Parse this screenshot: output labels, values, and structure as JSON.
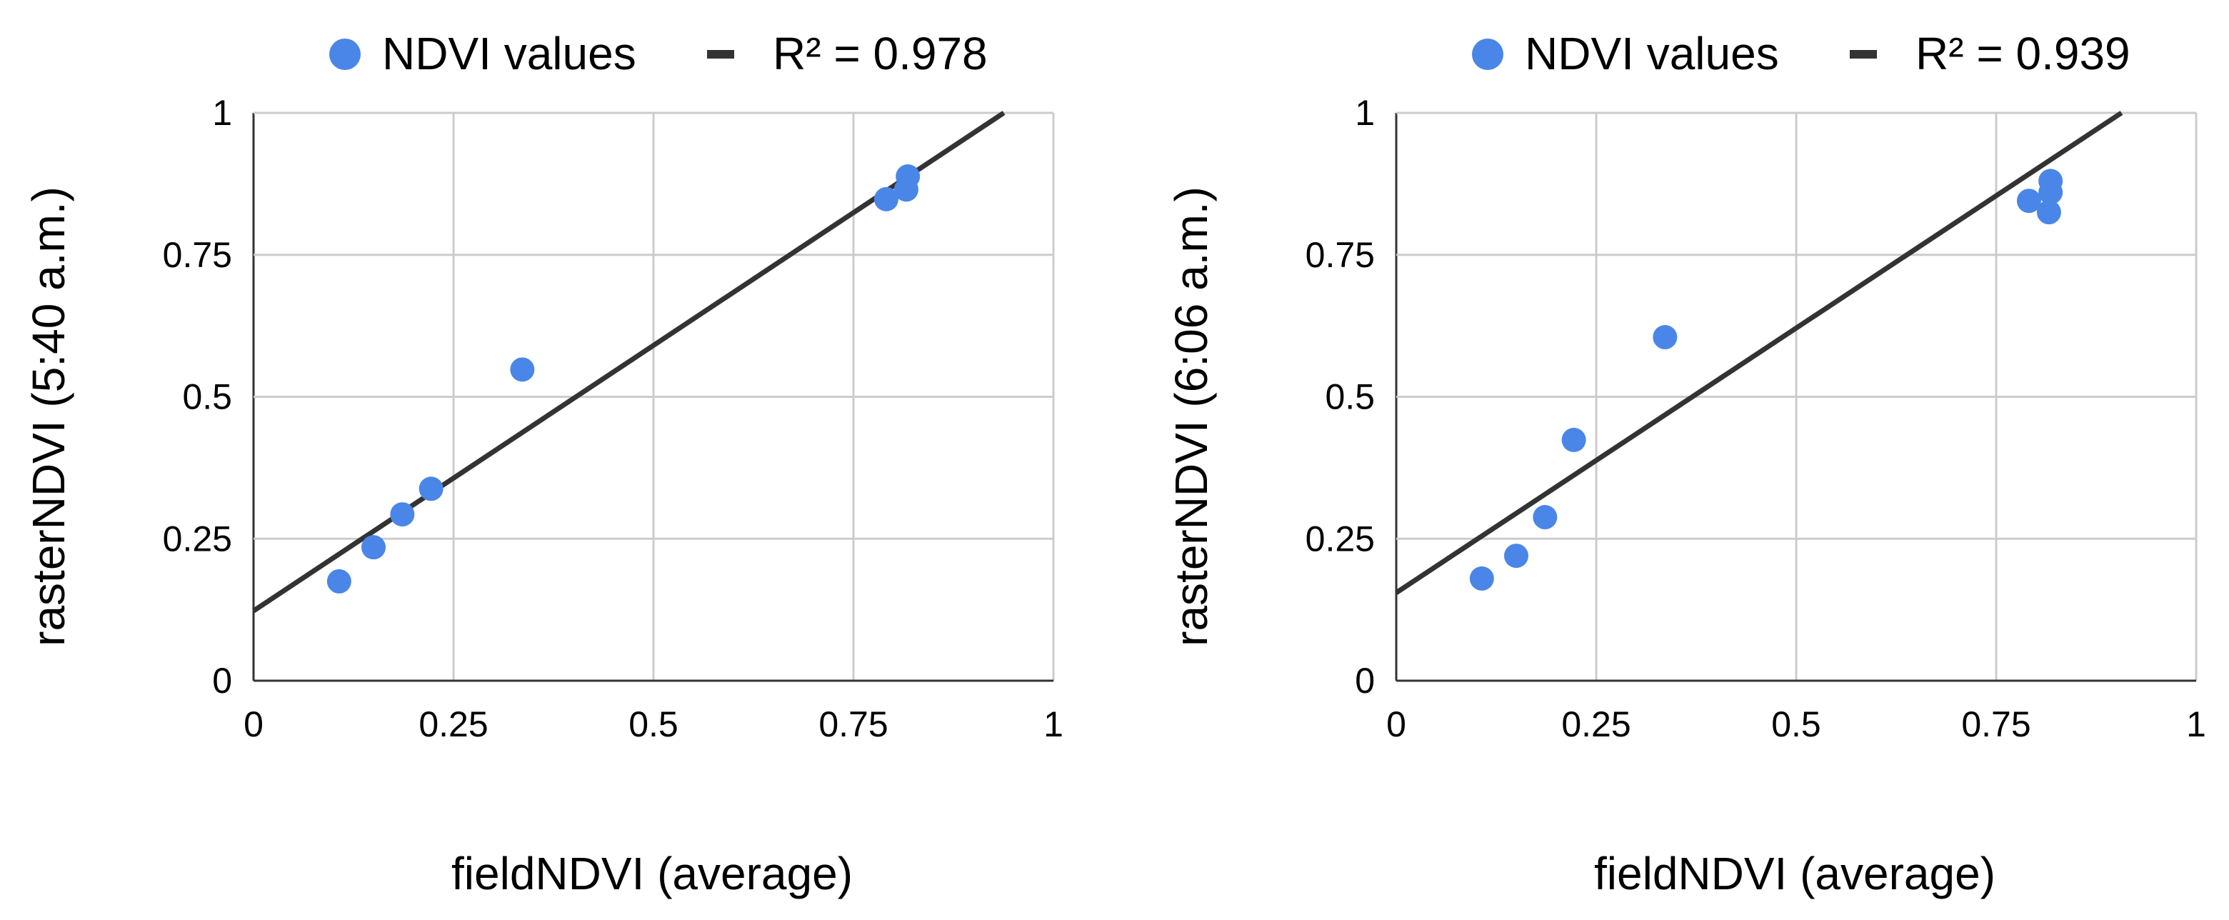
{
  "colors": {
    "points": "#4a86e8",
    "trendline": "#333333",
    "grid": "#cccccc"
  },
  "chart_data": [
    {
      "type": "scatter",
      "legend": {
        "series_label": "NDVI values",
        "trend_label": "R² = 0.978"
      },
      "xlabel": "fieldNDVI (average)",
      "ylabel": "rasterNDVI (5:40 a.m.)",
      "xlim": [
        0,
        1
      ],
      "ylim": [
        0,
        1
      ],
      "xticks": [
        "0",
        "0.25",
        "0.5",
        "0.75",
        "1"
      ],
      "yticks": [
        "0",
        "0.25",
        "0.5",
        "0.75",
        "1"
      ],
      "grid": true,
      "points": [
        {
          "x": 0.107,
          "y": 0.175
        },
        {
          "x": 0.15,
          "y": 0.235
        },
        {
          "x": 0.186,
          "y": 0.293
        },
        {
          "x": 0.222,
          "y": 0.338
        },
        {
          "x": 0.336,
          "y": 0.548
        },
        {
          "x": 0.791,
          "y": 0.848
        },
        {
          "x": 0.816,
          "y": 0.865
        },
        {
          "x": 0.818,
          "y": 0.888
        }
      ],
      "trendline": {
        "intercept": 0.123,
        "slope": 0.935
      }
    },
    {
      "type": "scatter",
      "legend": {
        "series_label": "NDVI values",
        "trend_label": "R² = 0.939"
      },
      "xlabel": "fieldNDVI (average)",
      "ylabel": "rasterNDVI (6:06 a.m.)",
      "xlim": [
        0,
        1
      ],
      "ylim": [
        0,
        1
      ],
      "xticks": [
        "0",
        "0.25",
        "0.5",
        "0.75",
        "1"
      ],
      "yticks": [
        "0",
        "0.25",
        "0.5",
        "0.75",
        "1"
      ],
      "grid": true,
      "points": [
        {
          "x": 0.107,
          "y": 0.18
        },
        {
          "x": 0.15,
          "y": 0.22
        },
        {
          "x": 0.186,
          "y": 0.288
        },
        {
          "x": 0.222,
          "y": 0.424
        },
        {
          "x": 0.336,
          "y": 0.605
        },
        {
          "x": 0.791,
          "y": 0.845
        },
        {
          "x": 0.816,
          "y": 0.825
        },
        {
          "x": 0.818,
          "y": 0.86
        },
        {
          "x": 0.818,
          "y": 0.88
        }
      ],
      "trendline": {
        "intercept": 0.155,
        "slope": 0.932
      }
    }
  ]
}
